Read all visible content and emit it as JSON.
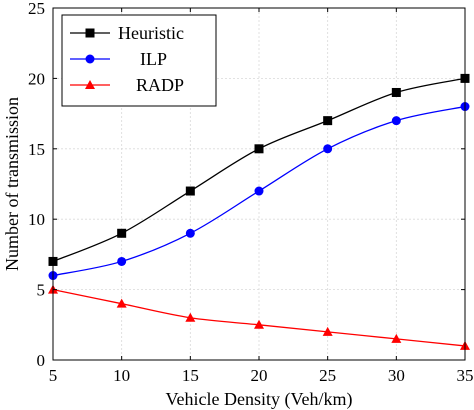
{
  "chart_data": {
    "type": "line",
    "title": "",
    "xlabel": "Vehicle Density (Veh/km)",
    "ylabel": "Number of transmission",
    "x": [
      5,
      10,
      15,
      20,
      25,
      30,
      35
    ],
    "xlim": [
      5,
      35
    ],
    "ylim": [
      0,
      25
    ],
    "xticks": [
      5,
      10,
      15,
      20,
      25,
      30,
      35
    ],
    "yticks": [
      0,
      5,
      10,
      15,
      20,
      25
    ],
    "grid": true,
    "legend_position": "top-left",
    "series": [
      {
        "name": "Heuristic",
        "values": [
          7,
          9,
          12,
          15,
          17,
          19,
          20
        ],
        "color": "#000000",
        "marker": "square"
      },
      {
        "name": "ILP",
        "values": [
          6,
          7,
          9,
          12,
          15,
          17,
          18
        ],
        "color": "#0000ff",
        "marker": "circle"
      },
      {
        "name": "RADP",
        "values": [
          5,
          4,
          3,
          2.5,
          2,
          1.5,
          1
        ],
        "color": "#ff0000",
        "marker": "triangle"
      }
    ]
  }
}
